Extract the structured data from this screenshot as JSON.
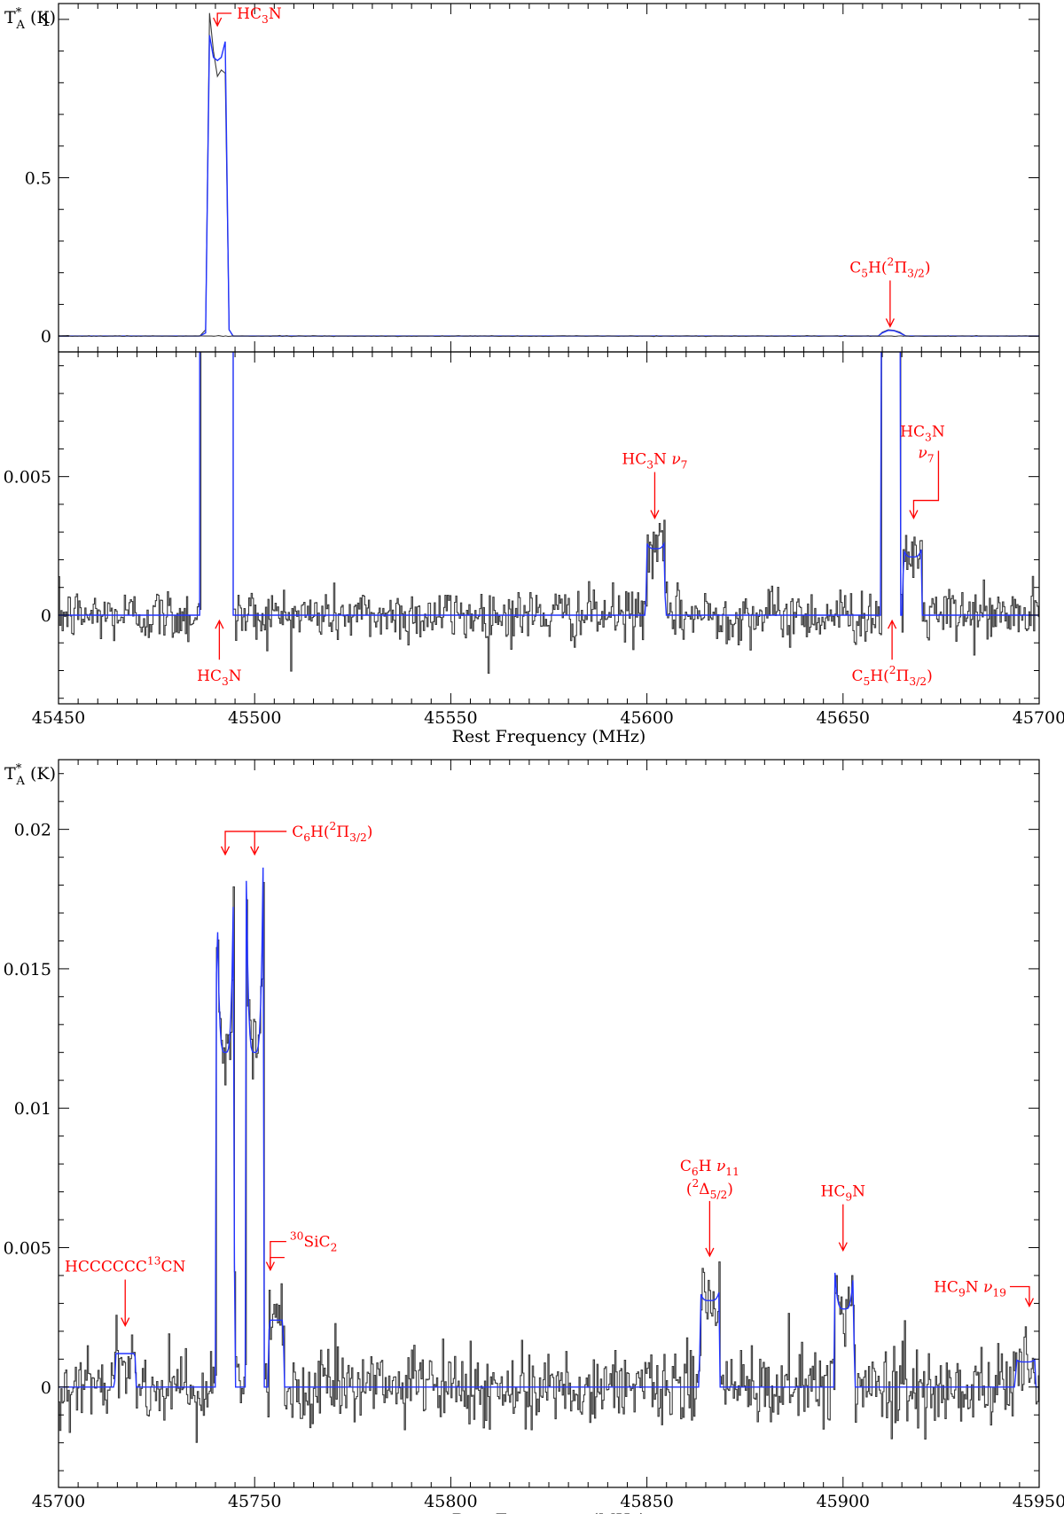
{
  "colors": {
    "spectrum": "#3a3a3a",
    "model": "#2233ff",
    "annotation": "#ff0000"
  },
  "chart_data": [
    {
      "type": "line",
      "panel": "top",
      "title": "",
      "ylabel": "T*A (K)",
      "ylabel_parts": {
        "main": "T",
        "sup": "*",
        "sub": "A",
        "unit": " (K)"
      },
      "xlim": [
        45450,
        45700
      ],
      "ylim": [
        -0.05,
        1.05
      ],
      "yticks": [
        {
          "v": 0,
          "label": "0"
        },
        {
          "v": 0.5,
          "label": "0.5"
        },
        {
          "v": 1,
          "label": "1"
        }
      ],
      "series": [
        {
          "role": "observed",
          "x": [
            45450,
            45486,
            45487.5,
            45488.5,
            45489.5,
            45490.5,
            45491.5,
            45492.5,
            45493.5,
            45494.5,
            45496,
            45600,
            45659,
            45660,
            45661.5,
            45663,
            45664.5,
            45666,
            45700
          ],
          "y": [
            0,
            0,
            0.02,
            1.02,
            0.9,
            0.82,
            0.84,
            0.83,
            0.02,
            0,
            0,
            0,
            0,
            0.012,
            0.02,
            0.018,
            0.012,
            0,
            0
          ]
        },
        {
          "role": "model",
          "x": [
            45450,
            45486,
            45487.5,
            45488.5,
            45489.5,
            45490.5,
            45491.5,
            45492.5,
            45493.5,
            45494.5,
            45496,
            45600,
            45659,
            45660,
            45661.5,
            45663,
            45664.5,
            45666,
            45700
          ],
          "y": [
            0,
            0,
            0.01,
            0.95,
            0.88,
            0.87,
            0.88,
            0.93,
            0.02,
            0,
            0,
            0,
            0,
            0.01,
            0.018,
            0.017,
            0.01,
            0,
            0
          ]
        }
      ],
      "annotations": [
        {
          "label": "HC3N",
          "parts": [
            [
              "HC",
              ""
            ],
            [
              "3",
              "sub"
            ],
            [
              "N",
              ""
            ]
          ],
          "x": 45490.5,
          "tip": 0.98,
          "style": "bent-up"
        },
        {
          "label": "C5H(2Π3/2)",
          "parts": [
            [
              "C",
              ""
            ],
            [
              "5",
              "sub"
            ],
            [
              "H(",
              ""
            ],
            [
              "2",
              "sup"
            ],
            [
              "Π",
              ""
            ],
            [
              "3/2",
              "sub"
            ],
            [
              ")",
              ""
            ]
          ],
          "x": 45662,
          "tip": 0.03,
          "style": "down"
        }
      ]
    },
    {
      "type": "line",
      "panel": "middle",
      "title": "",
      "xlabel": "Rest Frequency (MHz)",
      "xlim": [
        45450,
        45700
      ],
      "ylim": [
        -0.0032,
        0.0095
      ],
      "xticks": [
        45450,
        45500,
        45550,
        45600,
        45650,
        45700
      ],
      "yticks": [
        {
          "v": 0,
          "label": "0"
        },
        {
          "v": 0.005,
          "label": "0.005"
        }
      ],
      "noise_rms": 0.0005,
      "lines": [
        {
          "name": "HC3N",
          "center": 45490.3,
          "halfwidth": 3.8,
          "peak": 0.9,
          "horn": 1.0
        },
        {
          "name": "HC3N v7 (1)",
          "center": 45602.2,
          "halfwidth": 2.3,
          "peak": 0.0024,
          "horn": 1.1
        },
        {
          "name": "C5H(2Pi3/2)",
          "center": 45662.2,
          "halfwidth": 2.3,
          "peak": 0.02,
          "horn": 1.0
        },
        {
          "name": "HC3N v7 (2)",
          "center": 45667.7,
          "halfwidth": 2.3,
          "peak": 0.0021,
          "horn": 1.15
        }
      ],
      "annotations": [
        {
          "label": "HC3N ν7",
          "parts": [
            [
              "HC",
              ""
            ],
            [
              "3",
              "sub"
            ],
            [
              "N  ",
              ""
            ],
            [
              "ν",
              "it"
            ],
            [
              "7",
              "sub"
            ]
          ],
          "x": 45602,
          "tip": 0.0035,
          "style": "down"
        },
        {
          "label": "HC3N ν7",
          "parts": [
            [
              "HC",
              ""
            ],
            [
              "3",
              "sub"
            ],
            [
              "N",
              ""
            ]
          ],
          "parts2": [
            [
              "ν",
              "it"
            ],
            [
              "7",
              "sub"
            ]
          ],
          "x": 45668,
          "tip": 0.0035,
          "style": "bent-down"
        },
        {
          "label": "HC3N",
          "parts": [
            [
              "HC",
              ""
            ],
            [
              "3",
              "sub"
            ],
            [
              "N",
              ""
            ]
          ],
          "x": 45491,
          "tip": -0.0002,
          "style": "up"
        },
        {
          "label": "C5H(2Π3/2)",
          "parts": [
            [
              "C",
              ""
            ],
            [
              "5",
              "sub"
            ],
            [
              "H(",
              ""
            ],
            [
              "2",
              "sup"
            ],
            [
              "Π",
              ""
            ],
            [
              "3/2",
              "sub"
            ],
            [
              ")",
              ""
            ]
          ],
          "x": 45662.5,
          "tip": -0.0002,
          "style": "up"
        }
      ]
    },
    {
      "type": "line",
      "panel": "bottom",
      "title": "",
      "xlabel": "Rest Frequency (MHz)",
      "ylabel": "T*A (K)",
      "ylabel_parts": {
        "main": "T",
        "sup": "*",
        "sub": "A",
        "unit": " (K)"
      },
      "xlim": [
        45700,
        45950
      ],
      "ylim": [
        -0.0036,
        0.0225
      ],
      "xticks": [
        45700,
        45750,
        45800,
        45850,
        45900,
        45950
      ],
      "yticks": [
        {
          "v": 0,
          "label": "0"
        },
        {
          "v": 0.005,
          "label": "0.005"
        },
        {
          "v": 0.01,
          "label": "0.01"
        },
        {
          "v": 0.015,
          "label": "0.015"
        },
        {
          "v": 0.02,
          "label": "0.02"
        }
      ],
      "noise_rms": 0.0007,
      "lines": [
        {
          "name": "HCCCCCC13CN",
          "center": 45717,
          "halfwidth": 2.5,
          "peak": 0.0012,
          "horn": 1.0
        },
        {
          "name": "C6H(2Pi3/2) a",
          "center": 45742.5,
          "halfwidth": 2.2,
          "peak": 0.012,
          "horn": 1.6
        },
        {
          "name": "C6H(2Pi3/2) b",
          "center": 45750.0,
          "halfwidth": 2.2,
          "peak": 0.012,
          "horn": 1.6
        },
        {
          "name": "30SiC2",
          "center": 45755.5,
          "halfwidth": 1.8,
          "peak": 0.0024,
          "horn": 1.0
        },
        {
          "name": "C6H v11 (2Delta5/2)",
          "center": 45866,
          "halfwidth": 2.4,
          "peak": 0.0031,
          "horn": 1.1
        },
        {
          "name": "HC9N",
          "center": 45900.3,
          "halfwidth": 2.4,
          "peak": 0.0028,
          "horn": 1.5
        },
        {
          "name": "HC9N v19",
          "center": 45946.5,
          "halfwidth": 2.4,
          "peak": 0.0009,
          "horn": 1.1
        }
      ],
      "annotations": [
        {
          "label": "C6H(2Π3/2)",
          "parts": [
            [
              "C",
              ""
            ],
            [
              "6",
              "sub"
            ],
            [
              "H(",
              ""
            ],
            [
              "2",
              "sup"
            ],
            [
              "Π",
              ""
            ],
            [
              "3/2",
              "sub"
            ],
            [
              ")",
              ""
            ]
          ],
          "x": 45742.5,
          "x2": 45750,
          "tip": 0.0191,
          "style": "double"
        },
        {
          "label": "30SiC2",
          "parts": [
            [
              "30",
              "sup"
            ],
            [
              "SiC",
              ""
            ],
            [
              "2",
              "sub"
            ]
          ],
          "x": 45754,
          "tip": 0.0042,
          "style": "bent-up"
        },
        {
          "label": "HCCCCCC13CN",
          "parts": [
            [
              "HCCCCCC",
              ""
            ],
            [
              "13",
              "sup"
            ],
            [
              "CN",
              ""
            ]
          ],
          "x": 45717,
          "tip": 0.0022,
          "style": "down"
        },
        {
          "label": "C6H ν11 (2Δ5/2)",
          "parts": [
            [
              "C",
              ""
            ],
            [
              "6",
              "sub"
            ],
            [
              "H  ",
              ""
            ],
            [
              "ν",
              "it"
            ],
            [
              "11",
              "sub"
            ]
          ],
          "parts2": [
            [
              "(",
              ""
            ],
            [
              "2",
              "sup"
            ],
            [
              "Δ",
              ""
            ],
            [
              "5/2",
              "sub"
            ],
            [
              ")",
              ""
            ]
          ],
          "x": 45866,
          "tip": 0.0047,
          "style": "down"
        },
        {
          "label": "HC9N",
          "parts": [
            [
              "HC",
              ""
            ],
            [
              "9",
              "sub"
            ],
            [
              "N",
              ""
            ]
          ],
          "x": 45900,
          "tip": 0.0049,
          "style": "down"
        },
        {
          "label": "HC9N ν19",
          "parts": [
            [
              "HC",
              ""
            ],
            [
              "9",
              "sub"
            ],
            [
              "N  ",
              ""
            ],
            [
              "ν",
              "it"
            ],
            [
              "19",
              "sub"
            ]
          ],
          "x": 45947.5,
          "tip": 0.0029,
          "style": "bent-down"
        }
      ]
    }
  ]
}
